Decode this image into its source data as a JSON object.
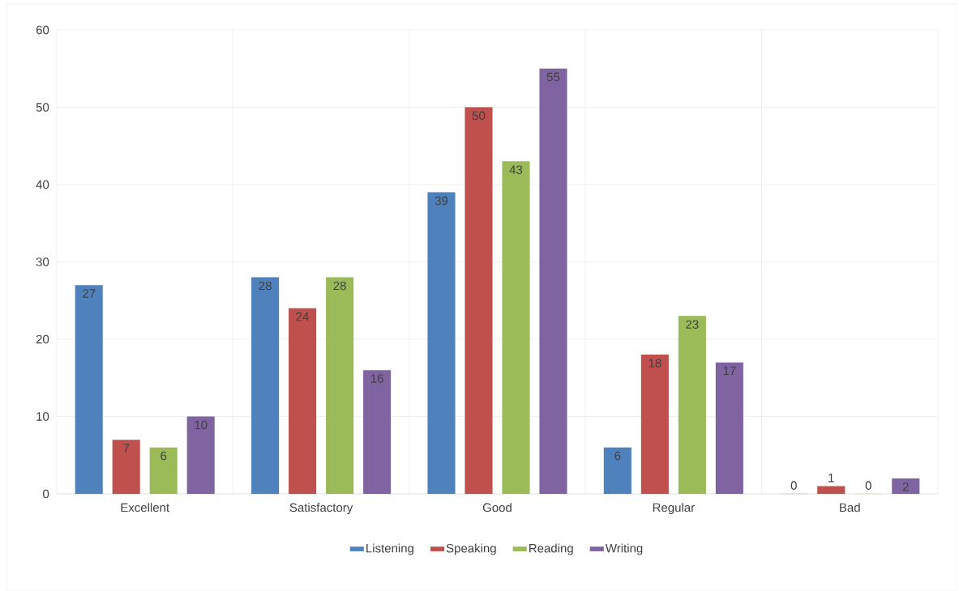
{
  "chart_data": {
    "type": "bar",
    "categories": [
      "Excellent",
      "Satisfactory",
      "Good",
      "Regular",
      "Bad"
    ],
    "series": [
      {
        "name": "Listening",
        "color": "#4f81bd",
        "values": [
          27,
          28,
          39,
          6,
          0
        ]
      },
      {
        "name": "Speaking",
        "color": "#c0504d",
        "values": [
          7,
          24,
          50,
          18,
          1
        ]
      },
      {
        "name": "Reading",
        "color": "#9bbb59",
        "values": [
          6,
          28,
          43,
          23,
          0
        ]
      },
      {
        "name": "Writing",
        "color": "#8064a2",
        "values": [
          10,
          16,
          55,
          17,
          2
        ]
      }
    ],
    "ylim": [
      0,
      60
    ],
    "yticks": [
      0,
      10,
      20,
      30,
      40,
      50,
      60
    ],
    "grid": true,
    "legend": "bottom",
    "data_labels": true
  }
}
